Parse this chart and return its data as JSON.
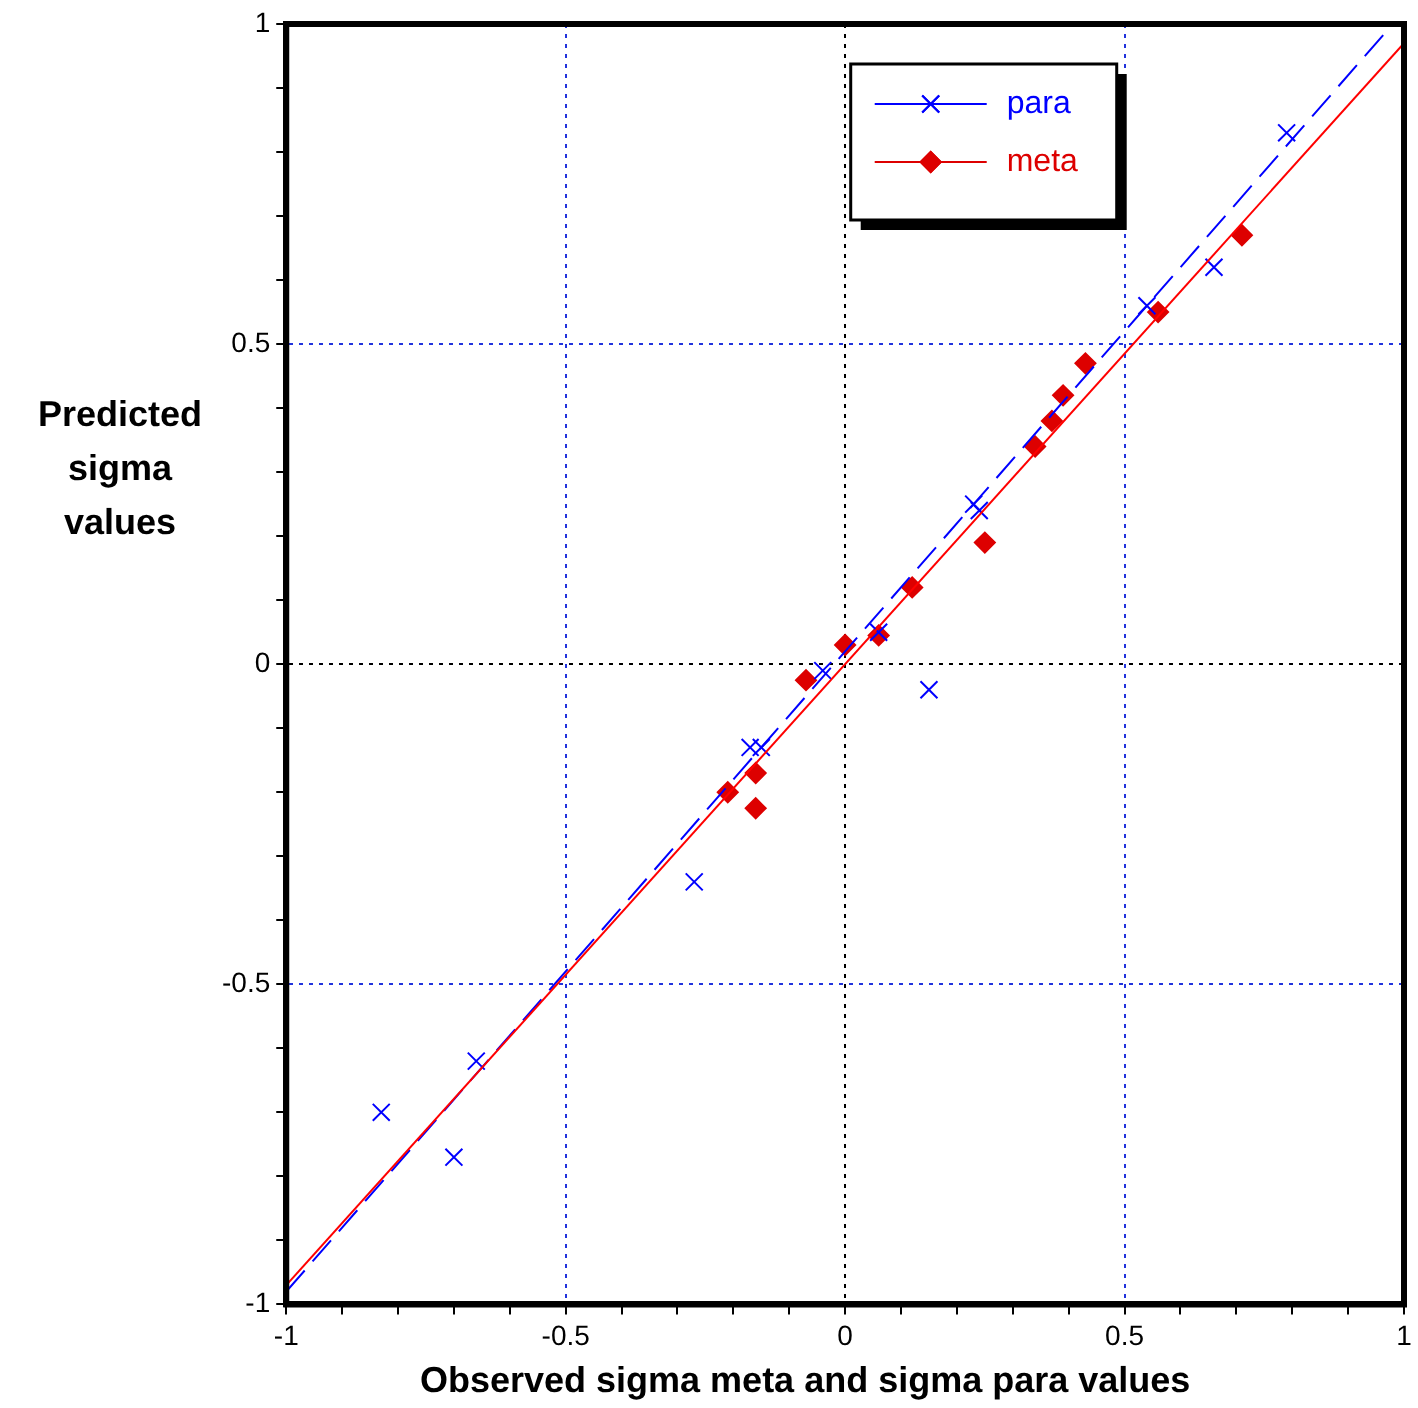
{
  "chart_data": {
    "type": "scatter",
    "xlabel": "Observed sigma meta and sigma para values",
    "ylabel": "Predicted sigma values",
    "xlim": [
      -1,
      1
    ],
    "ylim": [
      -1,
      1
    ],
    "xticks": [
      -1,
      {
        "value": -0.9,
        "label": null
      },
      {
        "value": -0.8,
        "label": null
      },
      {
        "value": -0.7,
        "label": null
      },
      {
        "value": -0.6,
        "label": null
      },
      -0.5,
      {
        "value": -0.4,
        "label": null
      },
      {
        "value": -0.3,
        "label": null
      },
      {
        "value": -0.2,
        "label": null
      },
      {
        "value": -0.1,
        "label": null
      },
      0,
      {
        "value": 0.1,
        "label": null
      },
      {
        "value": 0.2,
        "label": null
      },
      {
        "value": 0.3,
        "label": null
      },
      {
        "value": 0.4,
        "label": null
      },
      0.5,
      {
        "value": 0.6,
        "label": null
      },
      {
        "value": 0.7,
        "label": null
      },
      {
        "value": 0.8,
        "label": null
      },
      {
        "value": 0.9,
        "label": null
      },
      1
    ],
    "yticks": [
      -1,
      {
        "value": -0.9,
        "label": null
      },
      {
        "value": -0.8,
        "label": null
      },
      {
        "value": -0.7,
        "label": null
      },
      {
        "value": -0.6,
        "label": null
      },
      -0.5,
      {
        "value": -0.4,
        "label": null
      },
      {
        "value": -0.3,
        "label": null
      },
      {
        "value": -0.2,
        "label": null
      },
      {
        "value": -0.1,
        "label": null
      },
      0,
      {
        "value": 0.1,
        "label": null
      },
      {
        "value": 0.2,
        "label": null
      },
      {
        "value": 0.3,
        "label": null
      },
      {
        "value": 0.4,
        "label": null
      },
      0.5,
      {
        "value": 0.6,
        "label": null
      },
      {
        "value": 0.7,
        "label": null
      },
      {
        "value": 0.8,
        "label": null
      },
      {
        "value": 0.9,
        "label": null
      },
      1
    ],
    "grid": true,
    "legend": "top",
    "series": [
      {
        "type": "line",
        "color": "#ff0000",
        "line_style": "solid",
        "marker": "none",
        "x": [
          -1,
          1
        ],
        "values": [
          -0.97,
          0.97
        ]
      },
      {
        "type": "line",
        "color": "#0000ff",
        "line_style": "dashed",
        "marker": "none",
        "x": [
          -1,
          0.98
        ],
        "values": [
          -0.98,
          1.0
        ]
      },
      {
        "name": "para",
        "color": "#0000ff",
        "marker": "cross",
        "x": [
          0.79,
          0.66,
          0.54,
          0.23,
          0.24,
          0.15,
          0.06,
          -0.04,
          -0.17,
          -0.15,
          -0.27,
          -0.66,
          -0.83,
          -0.7
        ],
        "values": [
          0.83,
          0.62,
          0.56,
          0.25,
          0.24,
          -0.04,
          0.05,
          -0.01,
          -0.13,
          -0.13,
          -0.34,
          -0.62,
          -0.7,
          -0.77
        ]
      },
      {
        "name": "meta",
        "color": "#dd0000",
        "marker": "diamond",
        "x": [
          0.71,
          0.56,
          0.43,
          0.39,
          0.37,
          0.34,
          0.25,
          0.12,
          0.06,
          0.0,
          -0.07,
          -0.16,
          -0.21,
          -0.16
        ],
        "values": [
          0.67,
          0.55,
          0.47,
          0.42,
          0.38,
          0.34,
          0.19,
          0.12,
          0.045,
          0.03,
          -0.025,
          -0.17,
          -0.2,
          -0.225
        ]
      }
    ]
  }
}
